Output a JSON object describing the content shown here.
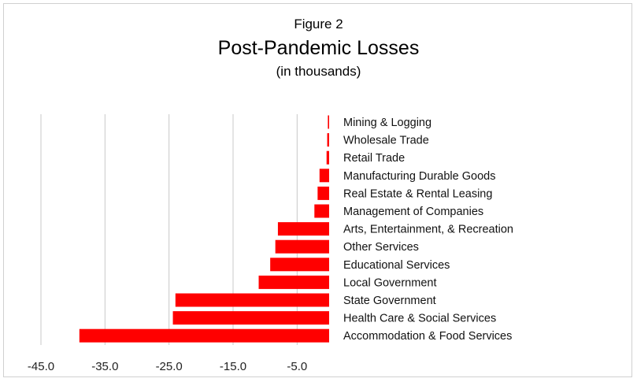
{
  "figure_label": "Figure 2",
  "title": "Post-Pandemic Losses",
  "subtitle": "(in thousands)",
  "colors": {
    "bar": "#ff0000",
    "grid": "#c8c8c8"
  },
  "chart_data": {
    "type": "bar",
    "orientation": "horizontal",
    "title": "Post-Pandemic Losses",
    "subtitle": "(in thousands)",
    "xlabel": "",
    "ylabel": "",
    "xlim": [
      -45,
      0
    ],
    "x_ticks": [
      -45,
      -35,
      -25,
      -15,
      -5
    ],
    "x_tick_labels": [
      "-45.0",
      "-35.0",
      "-25.0",
      "-15.0",
      "-5.0"
    ],
    "grid": true,
    "legend": "none",
    "categories": [
      "Mining & Logging",
      "Wholesale Trade",
      "Retail Trade",
      "Manufacturing Durable Goods",
      "Real Estate & Rental Leasing",
      "Management of Companies",
      "Arts, Entertainment, & Recreation",
      "Other Services",
      "Educational Services",
      "Local Government",
      "State Government",
      "Health Care & Social Services",
      "Accommodation & Food Services"
    ],
    "values": [
      -0.2,
      -0.3,
      -0.4,
      -1.5,
      -1.8,
      -2.3,
      -8.0,
      -8.4,
      -9.2,
      -11.0,
      -24.0,
      -24.4,
      -39.0
    ]
  }
}
